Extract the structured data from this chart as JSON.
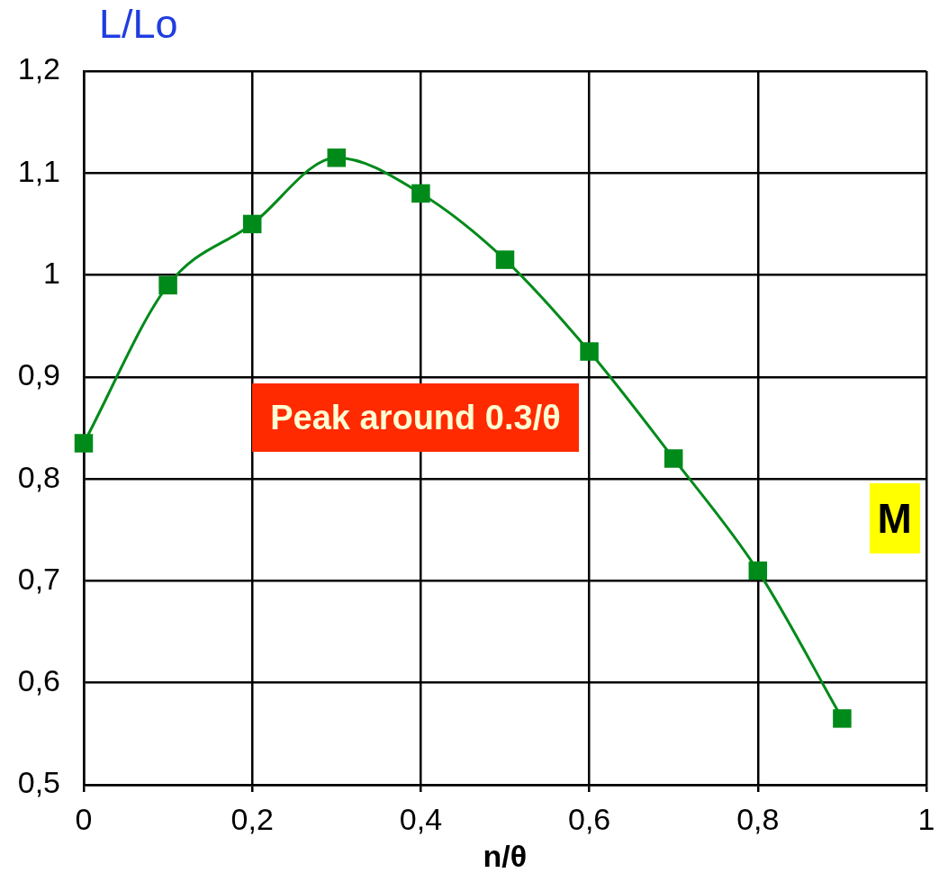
{
  "chart_data": {
    "type": "line",
    "xlabel": "n/θ",
    "ylabel": "L/Lo",
    "annotations": [
      "Peak around 0.3/θ",
      "M"
    ],
    "x": [
      0,
      0.1,
      0.2,
      0.3,
      0.4,
      0.5,
      0.6,
      0.7,
      0.8,
      0.9
    ],
    "series": [
      {
        "color": "#008a1a",
        "values": [
          0.835,
          0.99,
          1.05,
          1.115,
          1.08,
          1.015,
          0.925,
          0.82,
          0.71,
          0.565
        ]
      }
    ],
    "xlim": [
      0,
      1
    ],
    "ylim": [
      0.5,
      1.2
    ],
    "xticks": [
      0,
      {
        "value": 0.2,
        "label": "0,2"
      },
      {
        "value": 0.4,
        "label": "0,4"
      },
      {
        "value": 0.6,
        "label": "0,6"
      },
      {
        "value": 0.8,
        "label": "0,8"
      },
      1
    ],
    "yticks": [
      {
        "value": 0.5,
        "label": "0,5"
      },
      {
        "value": 0.6,
        "label": "0,6"
      },
      {
        "value": 0.7,
        "label": "0,7"
      },
      {
        "value": 0.8,
        "label": "0,8"
      },
      {
        "value": 0.9,
        "label": "0,9"
      },
      1,
      {
        "value": 1.1,
        "label": "1,1"
      },
      {
        "value": 1.2,
        "label": "1,2"
      }
    ],
    "grid": true,
    "marker": "square",
    "line_style": "solid"
  }
}
